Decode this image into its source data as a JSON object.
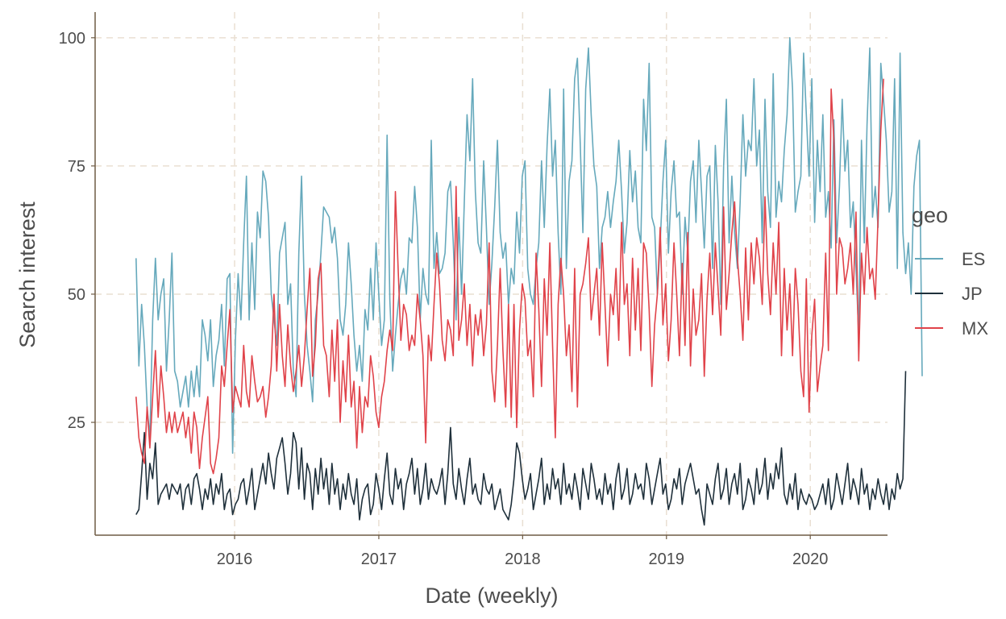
{
  "chart_data": {
    "type": "line",
    "xlabel": "Date (weekly)",
    "ylabel": "Search interest",
    "x_ticks": [
      {
        "value": "2016-01-01",
        "label": "2016"
      },
      {
        "value": "2017-01-01",
        "label": "2017"
      },
      {
        "value": "2018-01-01",
        "label": "2018"
      },
      {
        "value": "2019-01-01",
        "label": "2019"
      },
      {
        "value": "2020-01-01",
        "label": "2020"
      }
    ],
    "y_ticks": [
      "25",
      "50",
      "75",
      "100"
    ],
    "xlim": [
      "2015-01-12",
      "2020-07-15"
    ],
    "ylim": [
      3,
      105
    ],
    "grid": true,
    "legend": {
      "title": "geo",
      "position": "right"
    },
    "series_start": "2015-04-26",
    "series_interval_days": 7,
    "series": [
      {
        "name": "ES",
        "color": "#66a9bc",
        "values": [
          57,
          36,
          48,
          40,
          28,
          22,
          45,
          57,
          45,
          50,
          53,
          35,
          45,
          58,
          35,
          33,
          28,
          31,
          34,
          28,
          35,
          30,
          36,
          30,
          45,
          42,
          37,
          45,
          32,
          38,
          41,
          48,
          36,
          53,
          54,
          19,
          41,
          54,
          45,
          60,
          73,
          45,
          60,
          47,
          66,
          61,
          74,
          72,
          65,
          50,
          45,
          40,
          58,
          61,
          64,
          48,
          52,
          35,
          30,
          58,
          73,
          50,
          40,
          35,
          29,
          45,
          50,
          58,
          67,
          66,
          65,
          60,
          63,
          57,
          45,
          42,
          48,
          60,
          52,
          42,
          35,
          40,
          33,
          47,
          43,
          55,
          45,
          60,
          50,
          40,
          45,
          81,
          49,
          35,
          42,
          48,
          53,
          55,
          50,
          61,
          60,
          71,
          63,
          45,
          55,
          50,
          48,
          80,
          55,
          62,
          54,
          55,
          58,
          70,
          72,
          60,
          45,
          65,
          50,
          68,
          85,
          76,
          92,
          70,
          60,
          58,
          76,
          63,
          48,
          56,
          67,
          80,
          62,
          57,
          60,
          48,
          55,
          52,
          66,
          58,
          73,
          76,
          55,
          50,
          48,
          55,
          60,
          76,
          63,
          79,
          90,
          73,
          80,
          62,
          50,
          90,
          55,
          72,
          76,
          92,
          96,
          80,
          62,
          90,
          98,
          85,
          75,
          71,
          55,
          63,
          65,
          70,
          63,
          68,
          72,
          80,
          70,
          58,
          64,
          78,
          68,
          74,
          63,
          60,
          88,
          78,
          95,
          65,
          63,
          50,
          60,
          72,
          80,
          58,
          70,
          76,
          65,
          66,
          50,
          65,
          58,
          72,
          76,
          64,
          80,
          70,
          59,
          73,
          75,
          55,
          79,
          68,
          48,
          75,
          88,
          60,
          73,
          62,
          55,
          68,
          85,
          73,
          80,
          78,
          92,
          75,
          82,
          60,
          88,
          70,
          63,
          93,
          65,
          72,
          68,
          78,
          85,
          100,
          90,
          66,
          70,
          73,
          97,
          85,
          73,
          92,
          64,
          80,
          70,
          85,
          65,
          70,
          59,
          84,
          60,
          71,
          88,
          74,
          80,
          63,
          68,
          55,
          42,
          80,
          60,
          83,
          98,
          65,
          71,
          63,
          95,
          88,
          80,
          66,
          70,
          92,
          55,
          97,
          62,
          54,
          60,
          50,
          71,
          77,
          80,
          34
        ]
      },
      {
        "name": "JP",
        "color": "#1f303b",
        "values": [
          7,
          8,
          15,
          23,
          10,
          17,
          14,
          21,
          9,
          11,
          12,
          13,
          10,
          13,
          12,
          11,
          13,
          8,
          12,
          13,
          9,
          14,
          15,
          12,
          8,
          12,
          10,
          14,
          9,
          13,
          11,
          15,
          8,
          11,
          12,
          7,
          9,
          10,
          13,
          14,
          9,
          12,
          16,
          8,
          11,
          14,
          17,
          13,
          19,
          15,
          12,
          18,
          20,
          22,
          17,
          11,
          15,
          23,
          21,
          12,
          20,
          10,
          17,
          15,
          8,
          16,
          11,
          18,
          12,
          16,
          9,
          17,
          11,
          14,
          8,
          13,
          10,
          15,
          11,
          9,
          14,
          6,
          10,
          12,
          13,
          7,
          9,
          15,
          12,
          8,
          14,
          19,
          11,
          9,
          16,
          12,
          14,
          8,
          13,
          15,
          18,
          11,
          16,
          9,
          12,
          17,
          10,
          14,
          12,
          11,
          13,
          16,
          9,
          15,
          24,
          13,
          10,
          16,
          12,
          9,
          14,
          18,
          11,
          13,
          10,
          9,
          15,
          12,
          11,
          13,
          8,
          10,
          12,
          8,
          7,
          6,
          9,
          14,
          21,
          19,
          14,
          10,
          12,
          15,
          8,
          11,
          14,
          18,
          9,
          13,
          10,
          16,
          12,
          14,
          9,
          17,
          11,
          13,
          10,
          15,
          12,
          8,
          16,
          13,
          10,
          17,
          14,
          10,
          12,
          9,
          15,
          11,
          13,
          8,
          14,
          17,
          10,
          12,
          16,
          9,
          11,
          15,
          12,
          13,
          10,
          17,
          14,
          9,
          12,
          15,
          18,
          11,
          13,
          8,
          10,
          14,
          12,
          16,
          9,
          13,
          15,
          17,
          14,
          11,
          12,
          8,
          5,
          13,
          11,
          9,
          14,
          17,
          10,
          12,
          16,
          9,
          13,
          15,
          11,
          17,
          8,
          10,
          14,
          12,
          9,
          16,
          11,
          13,
          18,
          10,
          15,
          12,
          17,
          14,
          20,
          11,
          9,
          13,
          10,
          15,
          8,
          12,
          10,
          9,
          11,
          10,
          8,
          9,
          11,
          13,
          9,
          14,
          8,
          10,
          15,
          12,
          9,
          13,
          17,
          10,
          14,
          12,
          9,
          16,
          11,
          13,
          8,
          12,
          10,
          14,
          11,
          9,
          13,
          8,
          12,
          10,
          15,
          12,
          14,
          35
        ]
      },
      {
        "name": "MX",
        "color": "#e0434a",
        "values": [
          30,
          22,
          19,
          17,
          28,
          20,
          30,
          39,
          26,
          36,
          30,
          23,
          27,
          23,
          27,
          23,
          25,
          27,
          22,
          26,
          19,
          27,
          24,
          16,
          22,
          26,
          30,
          17,
          15,
          18,
          22,
          36,
          32,
          40,
          47,
          27,
          32,
          30,
          28,
          40,
          31,
          28,
          38,
          33,
          29,
          30,
          32,
          26,
          30,
          36,
          50,
          35,
          48,
          38,
          32,
          44,
          36,
          31,
          35,
          40,
          32,
          38,
          47,
          55,
          34,
          40,
          53,
          56,
          40,
          38,
          30,
          43,
          33,
          45,
          25,
          37,
          29,
          42,
          28,
          33,
          20,
          32,
          23,
          30,
          28,
          38,
          34,
          27,
          24,
          30,
          33,
          39,
          43,
          39,
          70,
          55,
          41,
          48,
          46,
          39,
          42,
          40,
          50,
          45,
          38,
          21,
          42,
          37,
          48,
          58,
          52,
          41,
          37,
          45,
          43,
          38,
          71,
          41,
          45,
          52,
          40,
          48,
          36,
          46,
          42,
          47,
          38,
          44,
          60,
          35,
          29,
          40,
          55,
          39,
          28,
          48,
          26,
          48,
          24,
          43,
          52,
          49,
          38,
          41,
          30,
          58,
          47,
          32,
          53,
          42,
          60,
          40,
          22,
          48,
          57,
          50,
          38,
          44,
          31,
          55,
          28,
          50,
          52,
          56,
          61,
          45,
          50,
          55,
          42,
          60,
          48,
          36,
          50,
          46,
          55,
          41,
          64,
          48,
          52,
          38,
          57,
          43,
          55,
          39,
          60,
          58,
          47,
          32,
          44,
          50,
          63,
          44,
          52,
          37,
          45,
          60,
          50,
          38,
          56,
          40,
          62,
          36,
          51,
          42,
          45,
          54,
          34,
          49,
          58,
          46,
          60,
          51,
          42,
          67,
          47,
          54,
          62,
          68,
          57,
          50,
          41,
          59,
          45,
          60,
          52,
          61,
          57,
          48,
          69,
          54,
          46,
          60,
          50,
          64,
          38,
          55,
          43,
          52,
          38,
          55,
          48,
          35,
          30,
          53,
          27,
          42,
          49,
          31,
          36,
          40,
          58,
          39,
          90,
          80,
          50,
          61,
          59,
          52,
          55,
          60,
          50,
          66,
          37,
          58,
          50,
          63,
          53,
          55,
          49,
          65,
          82,
          92
        ]
      }
    ]
  }
}
